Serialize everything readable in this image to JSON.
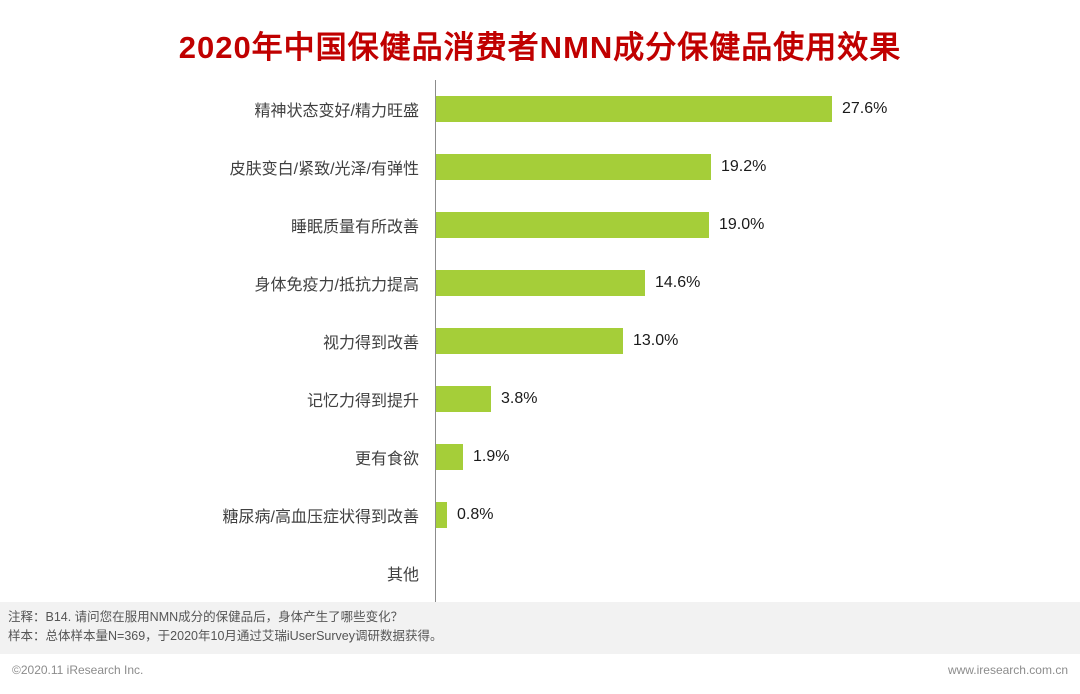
{
  "title": "2020年中国保健品消费者NMN成分保健品使用效果",
  "chart_data": {
    "type": "bar",
    "orientation": "horizontal",
    "title": "2020年中国保健品消费者NMN成分保健品使用效果",
    "categories": [
      "精神状态变好/精力旺盛",
      "皮肤变白/紧致/光泽/有弹性",
      "睡眠质量有所改善",
      "身体免疫力/抵抗力提高",
      "视力得到改善",
      "记忆力得到提升",
      "更有食欲",
      "糖尿病/高血压症状得到改善",
      "其他"
    ],
    "values": [
      27.6,
      19.2,
      19.0,
      14.6,
      13.0,
      3.8,
      1.9,
      0.8,
      0
    ],
    "value_labels": [
      "27.6%",
      "19.2%",
      "19.0%",
      "14.6%",
      "13.0%",
      "3.8%",
      "1.9%",
      "0.8%",
      ""
    ],
    "unit": "%",
    "xlim": [
      0,
      30
    ],
    "grid": false,
    "legend": "none",
    "bar_color": "#a5ce39",
    "title_color": "#c00000",
    "axis_line_color": "#8c8c8c"
  },
  "notes": {
    "line1": "注释：B14. 请问您在服用NMN成分的保健品后，身体产生了哪些变化？",
    "line2": "样本：总体样本量N=369，于2020年10月通过艾瑞iUserSurvey调研数据获得。"
  },
  "footer": {
    "left": "©2020.11 iResearch Inc.",
    "right": "www.iresearch.com.cn"
  }
}
